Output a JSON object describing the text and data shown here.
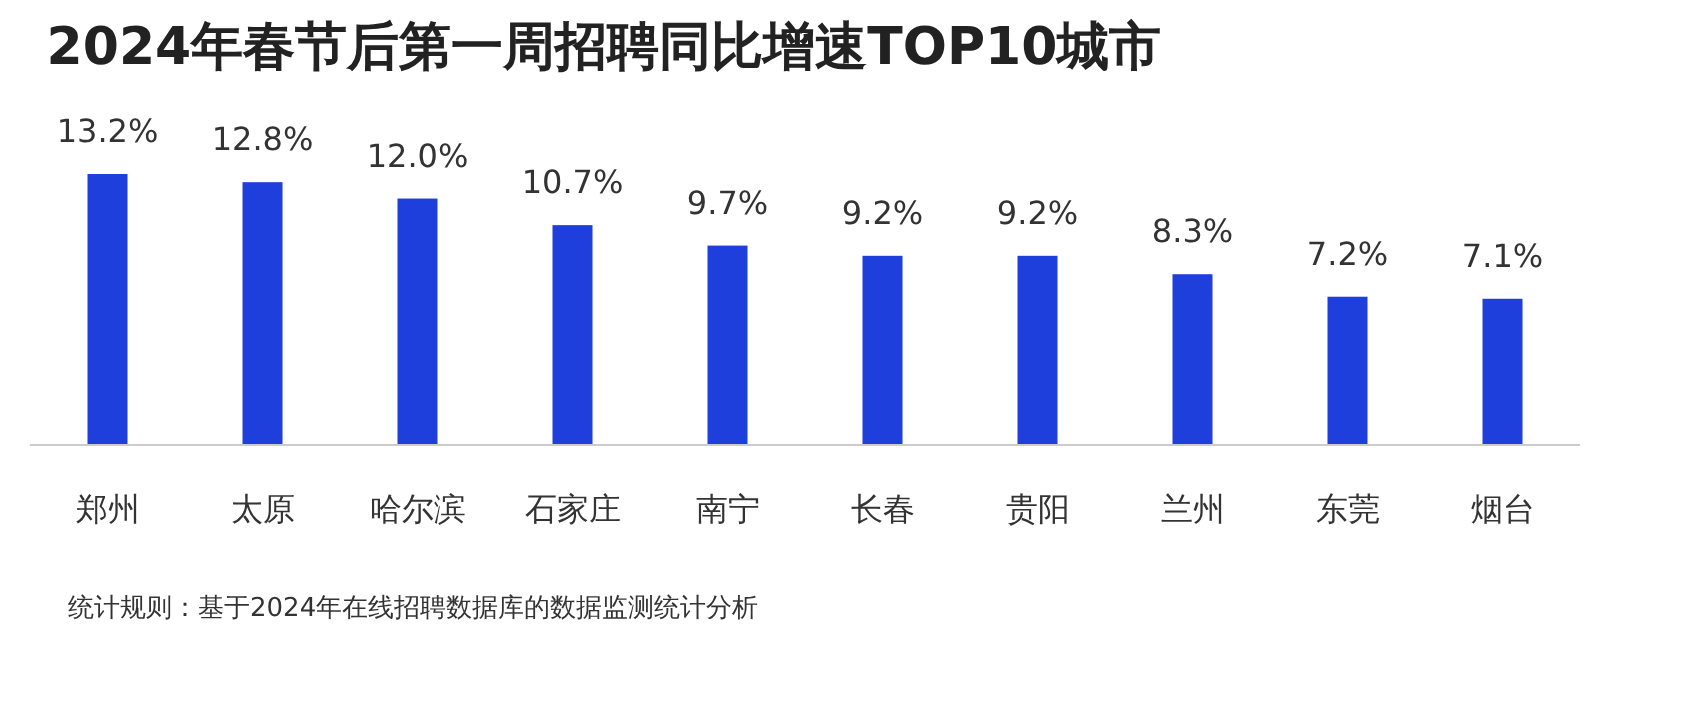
{
  "chart_data": {
    "type": "bar",
    "title": "2024年春节后第一周招聘同比增速TOP10城市",
    "categories": [
      "郑州",
      "太原",
      "哈尔滨",
      "石家庄",
      "南宁",
      "长春",
      "贵阳",
      "兰州",
      "东莞",
      "烟台"
    ],
    "values": [
      13.2,
      12.8,
      12.0,
      10.7,
      9.7,
      9.2,
      9.2,
      8.3,
      7.2,
      7.1
    ],
    "value_labels": [
      "13.2%",
      "12.8%",
      "12.0%",
      "10.7%",
      "9.7%",
      "9.2%",
      "9.2%",
      "8.3%",
      "7.2%",
      "7.1%"
    ],
    "color": "#1f3fdc",
    "relative": false,
    "annotations": [
      "统计规则：基于2024年在线招聘数据库的数据监测统计分析"
    ]
  }
}
